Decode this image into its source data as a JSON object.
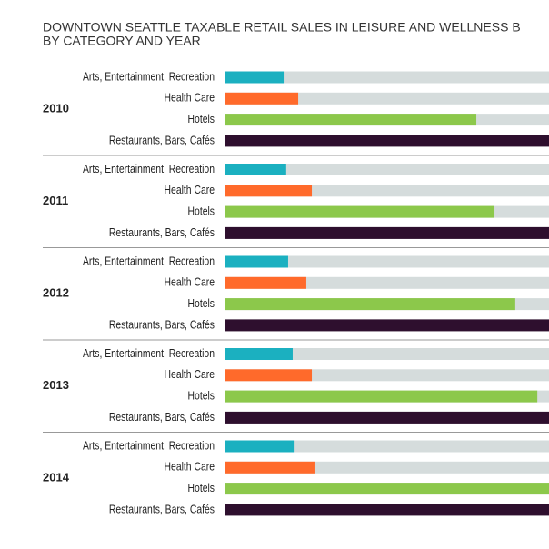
{
  "chart_data": {
    "type": "bar",
    "orientation": "horizontal",
    "title": [
      "DOWNTOWN SEATTLE TAXABLE RETAIL SALES IN LEISURE AND WELLNESS B",
      "BY CATEGORY AND YEAR"
    ],
    "categories": [
      "2010",
      "2011",
      "2012",
      "2013",
      "2014"
    ],
    "xlim": [
      0,
      100
    ],
    "series": [
      {
        "name": "Arts, Entertainment, Recreation",
        "color": "#1bb0c0",
        "values": [
          18.5,
          19.0,
          19.6,
          21.0,
          21.6
        ]
      },
      {
        "name": "Health Care",
        "color": "#ff6a2b",
        "values": [
          22.7,
          26.9,
          25.2,
          26.9,
          28.0
        ]
      },
      {
        "name": "Hotels",
        "color": "#8cc84b",
        "values": [
          77.6,
          83.2,
          89.6,
          96.4,
          100
        ]
      },
      {
        "name": "Restaurants, Bars, Cafés",
        "color": "#2e0f2e",
        "values": [
          100,
          100,
          100,
          100,
          100
        ]
      }
    ]
  }
}
